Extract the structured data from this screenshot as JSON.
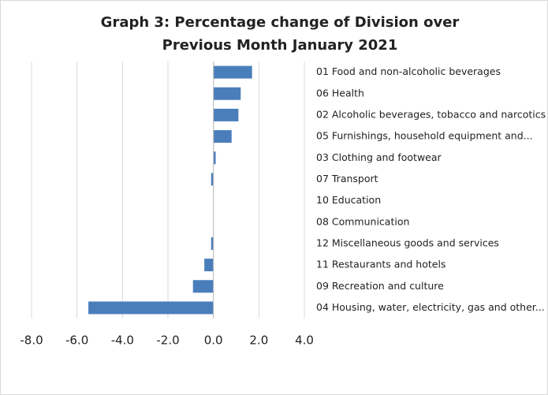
{
  "chart_data": {
    "type": "barh",
    "title": "Graph 3: Percentage change of Division over Previous Month January 2021",
    "categories": [
      "01 Food and non-alcoholic beverages",
      "06 Health",
      "02 Alcoholic beverages, tobacco and narcotics",
      "05 Furnishings, household equipment and...",
      "03 Clothing and footwear",
      "07 Transport",
      "10 Education",
      "08 Communication",
      "12 Miscellaneous goods and services",
      "11 Restaurants and hotels",
      "09 Recreation and culture",
      "04 Housing, water, electricity, gas and other..."
    ],
    "values": [
      1.7,
      1.2,
      1.1,
      0.8,
      0.1,
      -0.1,
      0,
      0,
      -0.1,
      -0.4,
      -0.9,
      -5.5
    ],
    "color": "#4a7ebb",
    "xlim": [
      -8,
      4
    ],
    "xticks": [
      {
        "value": -8,
        "label": "-8.0"
      },
      {
        "value": -6,
        "label": "-6.0"
      },
      {
        "value": -4,
        "label": "-4.0"
      },
      {
        "value": -2,
        "label": "-2.0"
      },
      {
        "value": 0,
        "label": "0.0"
      },
      {
        "value": 2,
        "label": "2.0"
      },
      {
        "value": 4,
        "label": "4.0"
      }
    ],
    "grid": true
  }
}
